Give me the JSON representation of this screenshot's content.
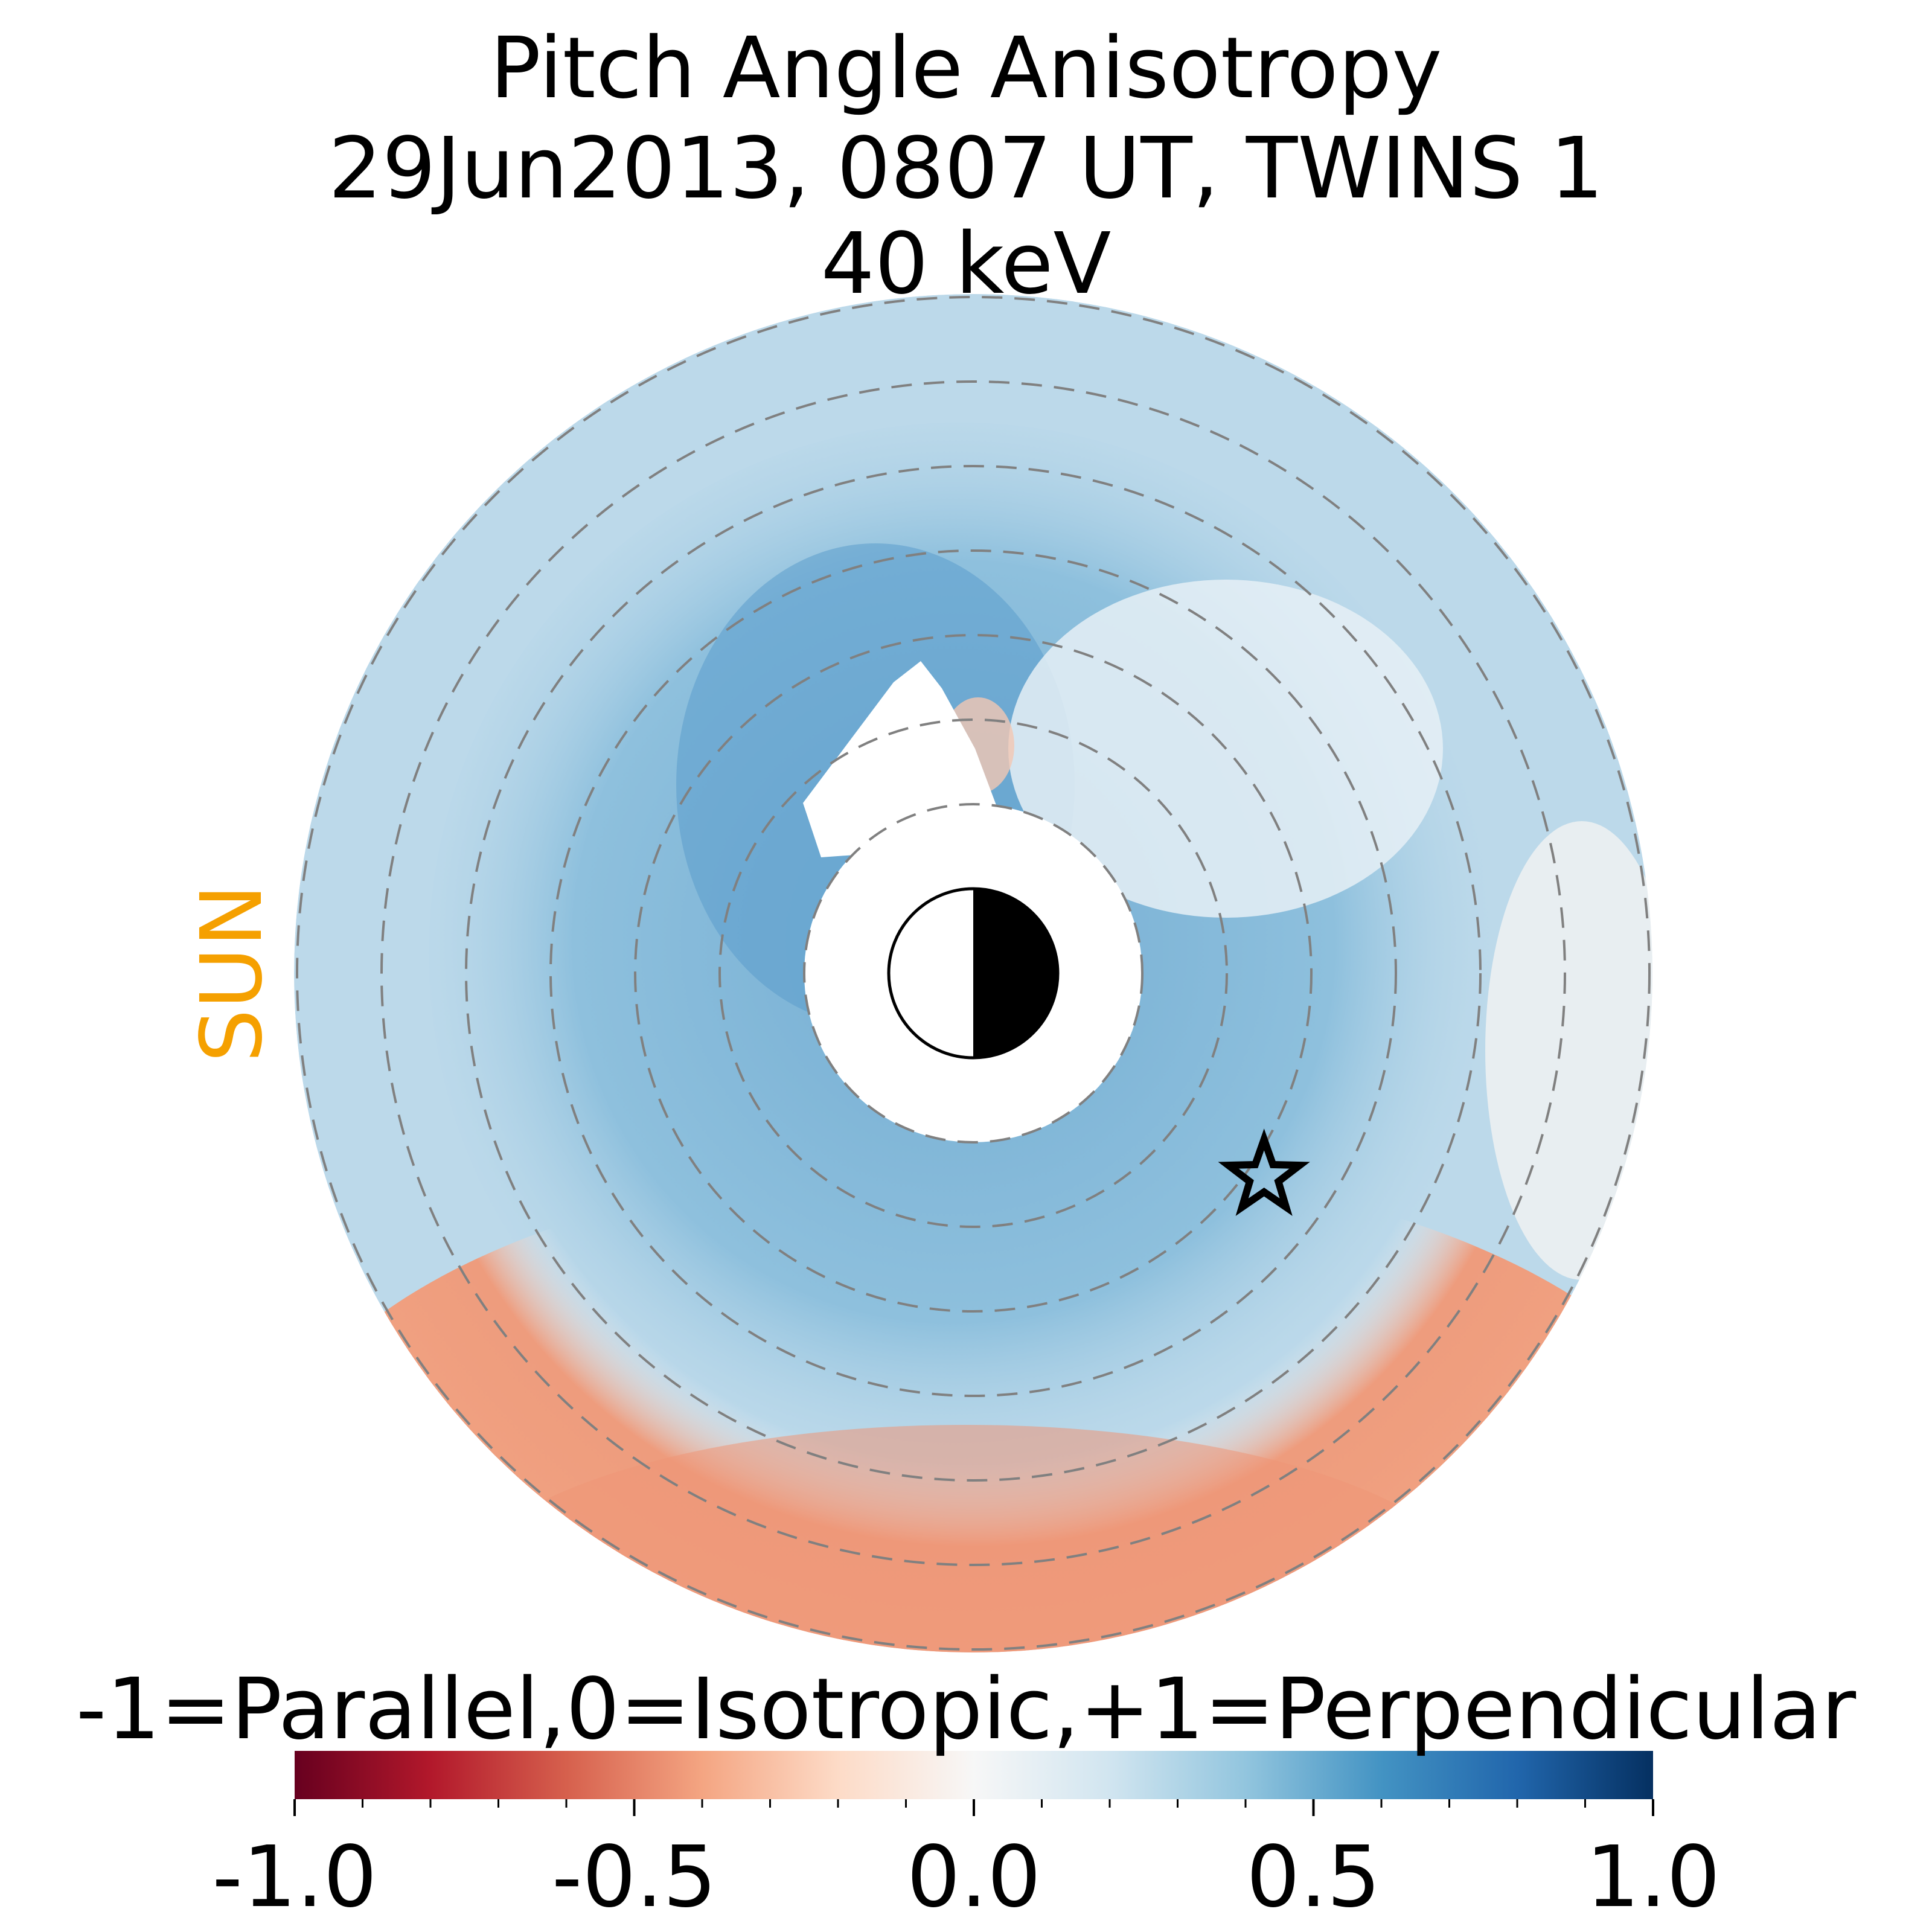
{
  "chart_data": {
    "type": "heatmap",
    "title": "Pitch Angle Anisotropy",
    "subtitle": "29Jun2013, 0807 UT,  TWINS 1",
    "energy": "40 keV",
    "sun_label": "SUN",
    "colorbar": {
      "label": "-1=Parallel,0=Isotropic,+1=Perpendicular",
      "range": [
        -1.0,
        1.0
      ],
      "ticks": [
        -1.0,
        -0.5,
        0.0,
        0.5,
        1.0
      ],
      "tick_labels": [
        "-1.0",
        "-0.5",
        "0.0",
        "0.5",
        "1.0"
      ],
      "colormap": "RdBu"
    },
    "polar_grid": {
      "ring_radii": [
        2,
        3,
        4,
        5,
        6,
        7,
        8
      ],
      "max_radius": 8,
      "style": "dashed gray"
    },
    "spacecraft_marker": {
      "shape": "star",
      "r": 4.2,
      "angle_deg": -35
    }
  },
  "colors": {
    "sun_label": "#f5a000",
    "grid": "#808080"
  }
}
